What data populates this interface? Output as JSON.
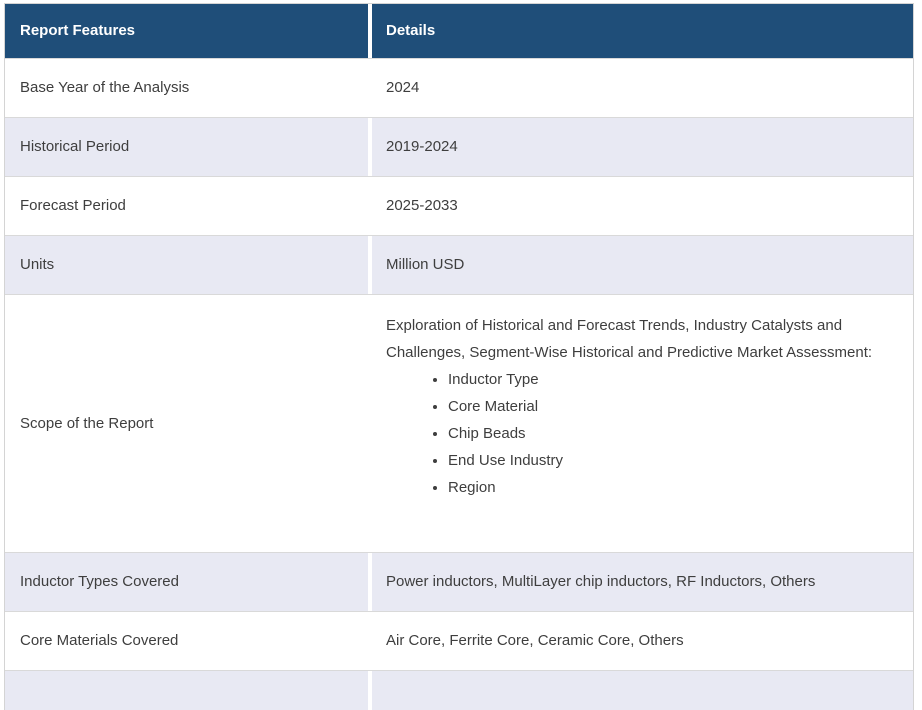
{
  "table": {
    "header": {
      "feature": "Report Features",
      "details": "Details"
    },
    "rows": [
      {
        "feature": "Base Year of the Analysis",
        "details": "2024"
      },
      {
        "feature": "Historical Period",
        "details": "2019-2024"
      },
      {
        "feature": "Forecast Period",
        "details": "2025-2033"
      },
      {
        "feature": "Units",
        "details": "Million USD"
      },
      {
        "feature": "Scope of the Report",
        "details_intro": "Exploration of Historical and Forecast Trends, Industry Catalysts and Challenges, Segment-Wise Historical and Predictive Market Assessment:",
        "details_bullets": [
          "Inductor Type",
          "Core Material",
          "Chip Beads",
          "End Use Industry",
          "Region"
        ]
      },
      {
        "feature": "Inductor Types Covered",
        "details": "Power inductors, MultiLayer chip inductors, RF Inductors, Others"
      },
      {
        "feature": "Core Materials Covered",
        "details": "Air Core, Ferrite Core, Ceramic Core, Others"
      }
    ],
    "colors": {
      "header_bg": "#1f4e79",
      "header_text": "#ffffff",
      "row_bg": "#ffffff",
      "row_alt_bg": "#e8e9f3",
      "border": "#d9d9d9",
      "body_text": "#3e3e3e"
    }
  }
}
